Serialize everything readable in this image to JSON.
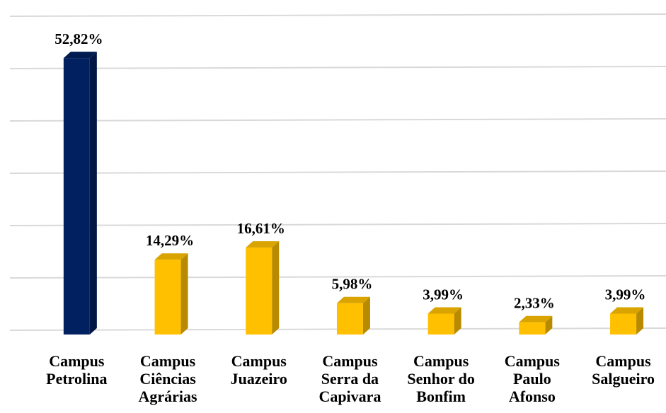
{
  "chart_data": {
    "type": "bar3d",
    "categories": [
      "Campus Petrolina",
      "Campus Ciências Agrárias",
      "Campus Juazeiro",
      "Campus Serra da Capivara",
      "Campus Senhor do Bonfim",
      "Campus Paulo Afonso",
      "Campus Salgueiro"
    ],
    "values": [
      52.82,
      14.29,
      16.61,
      5.98,
      3.99,
      2.33,
      3.99
    ],
    "value_labels": [
      "52,82%",
      "14,29%",
      "16,61%",
      "5,98%",
      "3,99%",
      "2,33%",
      "3,99%"
    ],
    "colors": [
      "#002060",
      "#ffc000",
      "#ffc000",
      "#ffc000",
      "#ffc000",
      "#ffc000",
      "#ffc000"
    ],
    "ylim": [
      0,
      60
    ],
    "yticks": [
      0,
      10,
      20,
      30,
      40,
      50,
      60
    ],
    "grid": true
  }
}
